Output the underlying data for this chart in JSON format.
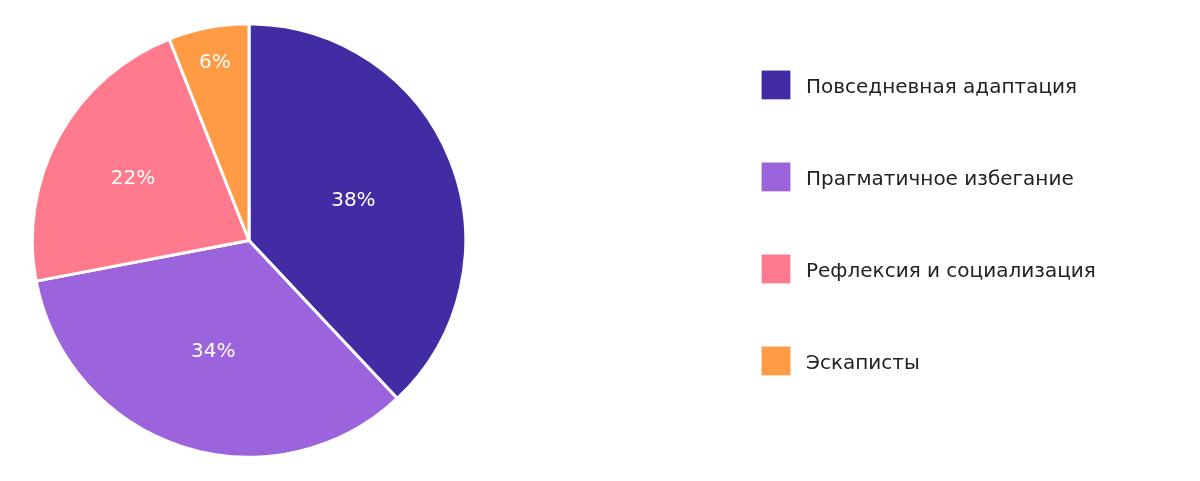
{
  "chart_data": {
    "type": "pie",
    "categories": [
      "Повседневная адаптация",
      "Прагматичное избегание",
      "Рефлексия и социализация",
      "Эскаписты"
    ],
    "values": [
      38,
      34,
      22,
      6
    ],
    "colors": [
      "#432ca3",
      "#9b63dc",
      "#ff7a8c",
      "#ff9a45"
    ],
    "value_labels": [
      "38%",
      "34%",
      "22%",
      "6%"
    ],
    "legend": "right"
  }
}
